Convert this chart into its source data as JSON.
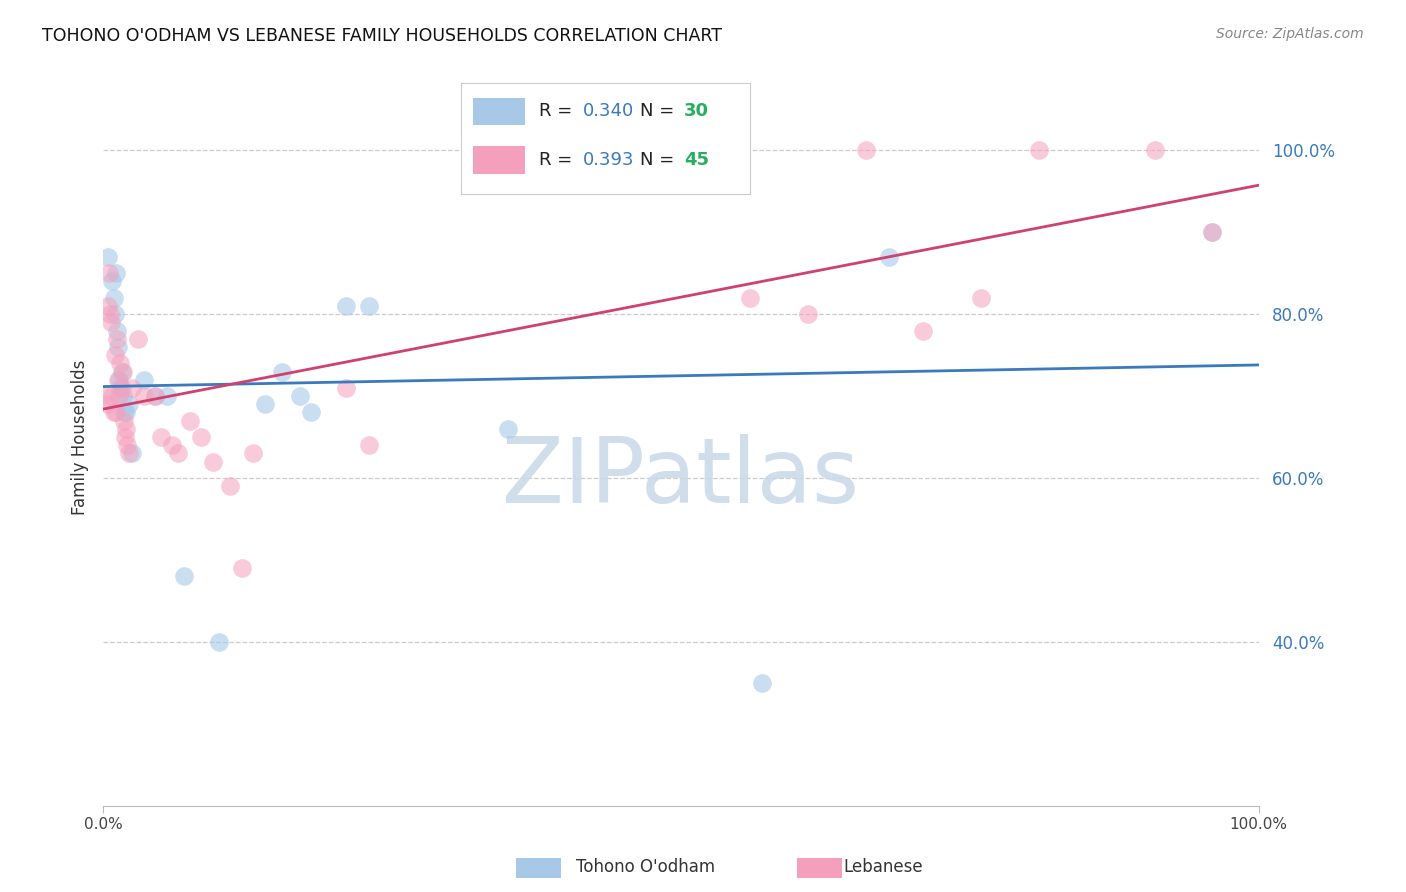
{
  "title": "TOHONO O'ODHAM VS LEBANESE FAMILY HOUSEHOLDS CORRELATION CHART",
  "source": "Source: ZipAtlas.com",
  "ylabel": "Family Households",
  "blue_R": 0.34,
  "blue_N": 30,
  "pink_R": 0.393,
  "pink_N": 45,
  "blue_color": "#a8c8e8",
  "pink_color": "#f4a0bc",
  "blue_line_color": "#3a7abf",
  "pink_line_color": "#d04070",
  "blue_tick_color": "#3a7abf",
  "n_color": "#27ae60",
  "watermark_text": "ZIPatlas",
  "watermark_color": "#c8d8e8",
  "blue_points_x": [
    0.4,
    0.8,
    0.9,
    1.0,
    1.1,
    1.2,
    1.3,
    1.4,
    1.5,
    1.6,
    1.7,
    1.8,
    2.0,
    2.2,
    2.5,
    3.5,
    4.5,
    5.5,
    7.0,
    10.0,
    14.0,
    15.5,
    17.0,
    18.0,
    21.0,
    23.0,
    35.0,
    57.0,
    68.0,
    96.0
  ],
  "blue_points_y": [
    87,
    84,
    82,
    80,
    85,
    78,
    76,
    72,
    71,
    73,
    70,
    68,
    68,
    69,
    63,
    72,
    70,
    70,
    48,
    40,
    69,
    73,
    70,
    68,
    81,
    81,
    66,
    35,
    87,
    90
  ],
  "pink_points_x": [
    0.2,
    0.3,
    0.4,
    0.5,
    0.6,
    0.7,
    0.8,
    0.9,
    1.0,
    1.1,
    1.2,
    1.3,
    1.4,
    1.5,
    1.6,
    1.7,
    1.8,
    1.9,
    2.0,
    2.1,
    2.2,
    2.5,
    3.0,
    3.5,
    4.5,
    5.0,
    6.0,
    6.5,
    7.5,
    8.5,
    9.5,
    11.0,
    12.0,
    13.0,
    21.0,
    23.0,
    46.0,
    56.0,
    61.0,
    66.0,
    71.0,
    76.0,
    81.0,
    91.0,
    96.0
  ],
  "pink_points_y": [
    70,
    69,
    81,
    85,
    80,
    79,
    70,
    68,
    75,
    68,
    77,
    72,
    70,
    74,
    71,
    73,
    67,
    65,
    66,
    64,
    63,
    71,
    77,
    70,
    70,
    65,
    64,
    63,
    67,
    65,
    62,
    59,
    49,
    63,
    71,
    64,
    100,
    82,
    80,
    100,
    78,
    82,
    100,
    100,
    90
  ],
  "xlim": [
    0,
    100
  ],
  "ylim": [
    20,
    110
  ],
  "ytick_positions": [
    40,
    60,
    80,
    100
  ],
  "ytick_labels": [
    "40.0%",
    "60.0%",
    "80.0%",
    "100.0%"
  ],
  "xtick_positions": [
    0,
    100
  ],
  "xtick_labels": [
    "0.0%",
    "100.0%"
  ],
  "grid_color": "#cccccc",
  "background_color": "#ffffff"
}
